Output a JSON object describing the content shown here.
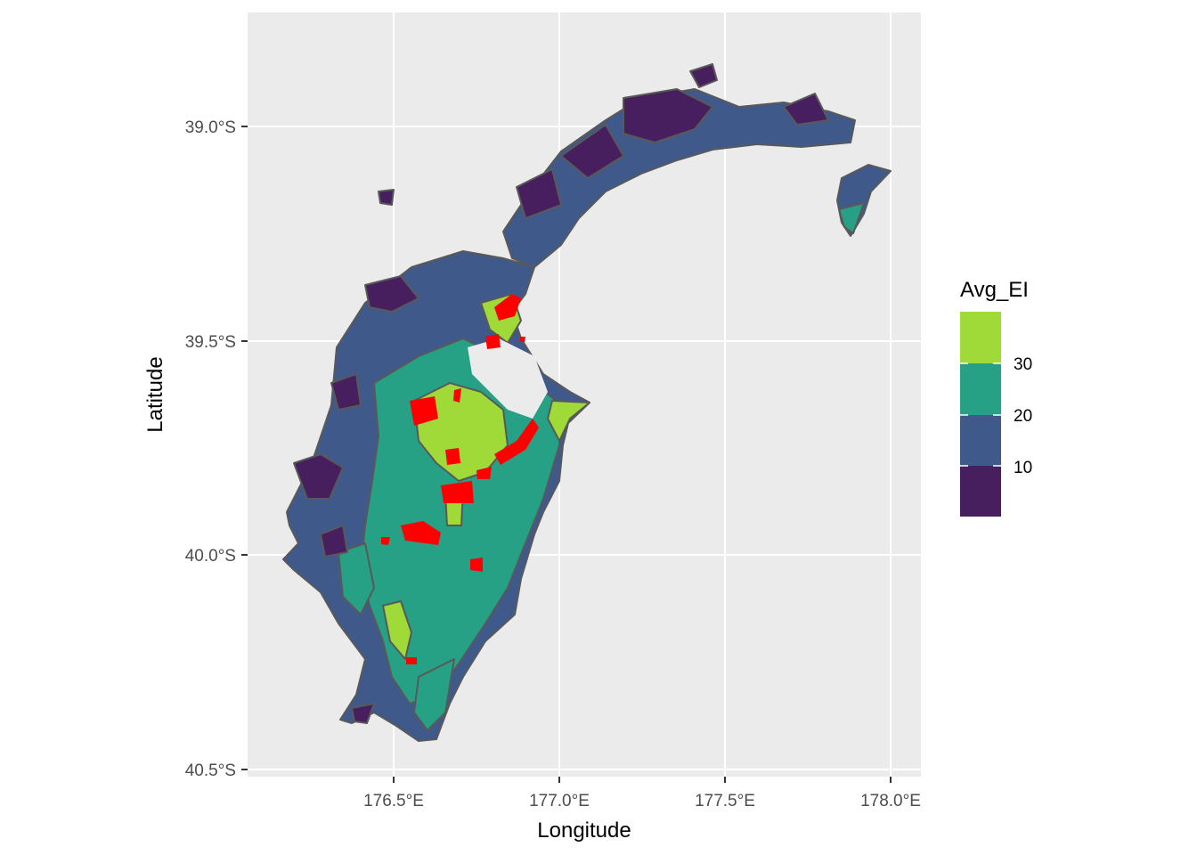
{
  "map": {
    "x_axis": {
      "title": "Longitude",
      "ticks": [
        {
          "value": 176.5,
          "label": "176.5°E"
        },
        {
          "value": 177.0,
          "label": "177.0°E"
        },
        {
          "value": 177.5,
          "label": "177.5°E"
        },
        {
          "value": 178.0,
          "label": "178.0°E"
        }
      ]
    },
    "y_axis": {
      "title": "Latitude",
      "ticks": [
        {
          "value": -39.0,
          "label": "39.0°S"
        },
        {
          "value": -39.5,
          "label": "39.5°S"
        },
        {
          "value": -40.0,
          "label": "40.0°S"
        },
        {
          "value": -40.5,
          "label": "40.5°S"
        }
      ]
    },
    "legend": {
      "title": "Avg_EI",
      "bins": [
        {
          "range": "> 30",
          "color": "#a0da39"
        },
        {
          "range": "20–30",
          "color": "#26a185"
        },
        {
          "range": "10–20",
          "color": "#3f5a8a"
        },
        {
          "range": "< 10",
          "color": "#471e5e"
        }
      ],
      "labels": [
        "30",
        "20",
        "10"
      ]
    },
    "colors": {
      "panel_background": "#ebebeb",
      "gridline": "#ffffff",
      "region_border": "#595959",
      "highlight": "#ff0000"
    }
  }
}
